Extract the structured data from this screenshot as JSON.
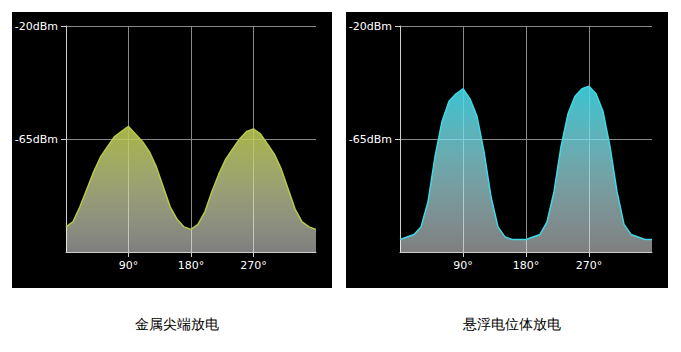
{
  "chart_data": [
    {
      "type": "area",
      "title": "金属尖端放电",
      "color": "#b8c84a",
      "x": [
        0,
        10,
        20,
        30,
        40,
        50,
        60,
        70,
        80,
        90,
        100,
        110,
        120,
        130,
        140,
        150,
        160,
        170,
        180,
        190,
        200,
        210,
        220,
        230,
        240,
        250,
        260,
        270,
        280,
        290,
        300,
        310,
        320,
        330,
        340,
        350,
        360
      ],
      "values": [
        -100,
        -98,
        -92,
        -85,
        -78,
        -72,
        -68,
        -64,
        -62,
        -60,
        -63,
        -66,
        -70,
        -76,
        -84,
        -92,
        -97,
        -100,
        -101,
        -99,
        -94,
        -86,
        -79,
        -73,
        -69,
        -65,
        -62,
        -61,
        -63,
        -67,
        -71,
        -77,
        -85,
        -93,
        -98,
        -100,
        -101
      ],
      "xlim": [
        0,
        360
      ],
      "xticks": [
        {
          "value": 90,
          "label": "90°"
        },
        {
          "value": 180,
          "label": "180°"
        },
        {
          "value": 270,
          "label": "270°"
        }
      ],
      "ylim": [
        -110,
        -20
      ],
      "yticks": [
        {
          "value": -65,
          "label": "-65dBm"
        },
        {
          "value": -20,
          "label": "-20dBm"
        }
      ],
      "grid": true
    },
    {
      "type": "area",
      "title": "悬浮电位体放电",
      "color": "#3fd8e6",
      "x": [
        0,
        10,
        20,
        30,
        40,
        50,
        60,
        70,
        80,
        90,
        100,
        110,
        120,
        130,
        140,
        150,
        160,
        170,
        180,
        190,
        200,
        210,
        220,
        230,
        240,
        250,
        260,
        270,
        280,
        290,
        300,
        310,
        320,
        330,
        340,
        350,
        360
      ],
      "values": [
        -105,
        -104,
        -103,
        -100,
        -90,
        -72,
        -58,
        -50,
        -47,
        -45,
        -49,
        -56,
        -70,
        -88,
        -100,
        -104,
        -105,
        -105,
        -105,
        -104,
        -103,
        -98,
        -86,
        -68,
        -55,
        -48,
        -45,
        -44,
        -47,
        -54,
        -68,
        -86,
        -99,
        -103,
        -104,
        -105,
        -105
      ],
      "xlim": [
        0,
        360
      ],
      "xticks": [
        {
          "value": 90,
          "label": "90°"
        },
        {
          "value": 180,
          "label": "180°"
        },
        {
          "value": 270,
          "label": "270°"
        }
      ],
      "ylim": [
        -110,
        -20
      ],
      "yticks": [
        {
          "value": -65,
          "label": "-65dBm"
        },
        {
          "value": -20,
          "label": "-20dBm"
        }
      ],
      "grid": true
    }
  ]
}
